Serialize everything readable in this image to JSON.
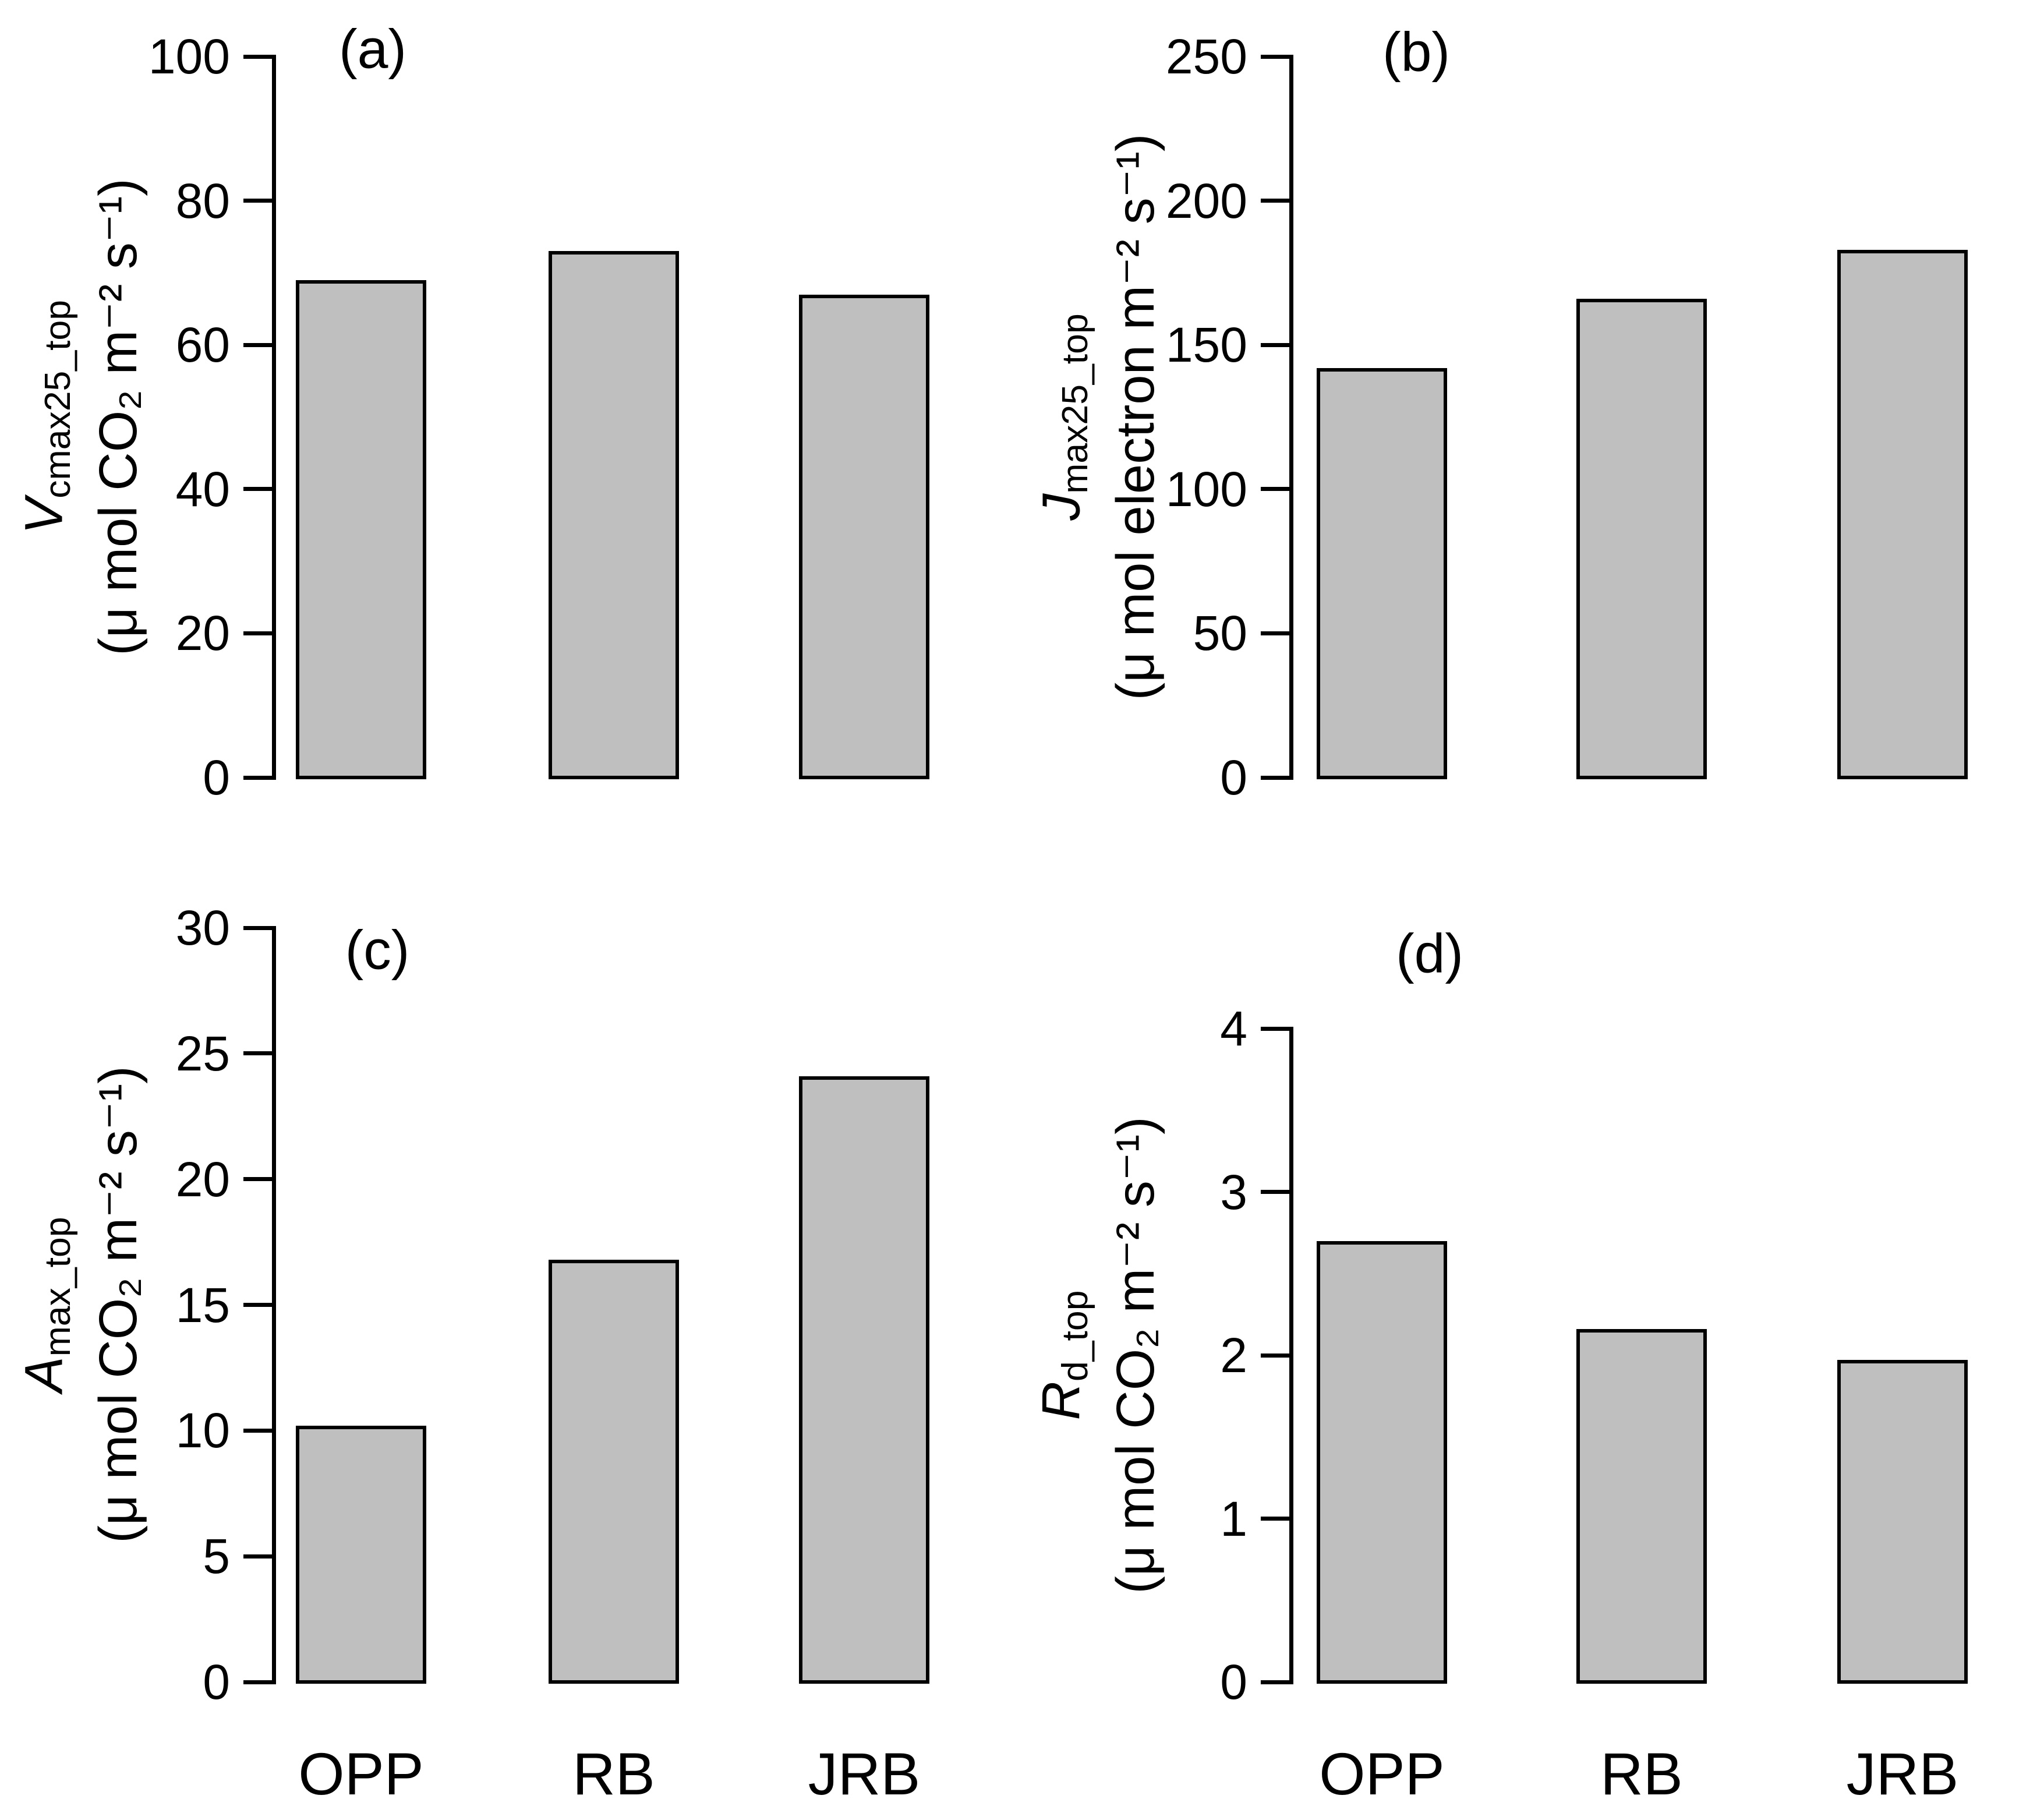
{
  "figure": {
    "background": "#ffffff",
    "bar_fill": "#bfbfbf",
    "bar_border": "#000000",
    "axis_color": "#000000"
  },
  "chart_data": [
    {
      "panel_label": "(a)",
      "type": "bar",
      "categories": [
        "OPP",
        "RB",
        "JRB"
      ],
      "values": [
        69,
        73,
        67
      ],
      "ylabel_variable": "V",
      "ylabel_subscript": "cmax25_top",
      "ylabel_units": "(μ mol CO₂ m⁻² s⁻¹)",
      "ylim": [
        0,
        100
      ],
      "yticks": [
        0,
        20,
        40,
        60,
        80,
        100
      ],
      "grid": false,
      "show_category_labels": false
    },
    {
      "panel_label": "(b)",
      "type": "bar",
      "categories": [
        "OPP",
        "RB",
        "JRB"
      ],
      "values": [
        142,
        166,
        183
      ],
      "ylabel_variable": "J",
      "ylabel_subscript": "max25_top",
      "ylabel_units": "(μ mol electron m⁻² s⁻¹)",
      "ylim": [
        0,
        250
      ],
      "yticks": [
        0,
        50,
        100,
        150,
        200,
        250
      ],
      "grid": false,
      "show_category_labels": false
    },
    {
      "panel_label": "(c)",
      "type": "bar",
      "categories": [
        "OPP",
        "RB",
        "JRB"
      ],
      "values": [
        10.2,
        16.8,
        24.1
      ],
      "ylabel_variable": "A",
      "ylabel_subscript": "max_top",
      "ylabel_units": "(μ mol CO₂ m⁻² s⁻¹)",
      "ylim": [
        0,
        30
      ],
      "yticks": [
        0,
        5,
        10,
        15,
        20,
        25,
        30
      ],
      "grid": false,
      "show_category_labels": true
    },
    {
      "panel_label": "(d)",
      "type": "bar",
      "categories": [
        "OPP",
        "RB",
        "JRB"
      ],
      "values": [
        2.7,
        2.16,
        1.97
      ],
      "ylabel_variable": "R",
      "ylabel_subscript": "d_top",
      "ylabel_units": "(μ mol CO₂ m⁻² s⁻¹)",
      "ylim": [
        0,
        4
      ],
      "yticks": [
        0,
        1,
        2,
        3,
        4
      ],
      "grid": false,
      "show_category_labels": true
    }
  ]
}
